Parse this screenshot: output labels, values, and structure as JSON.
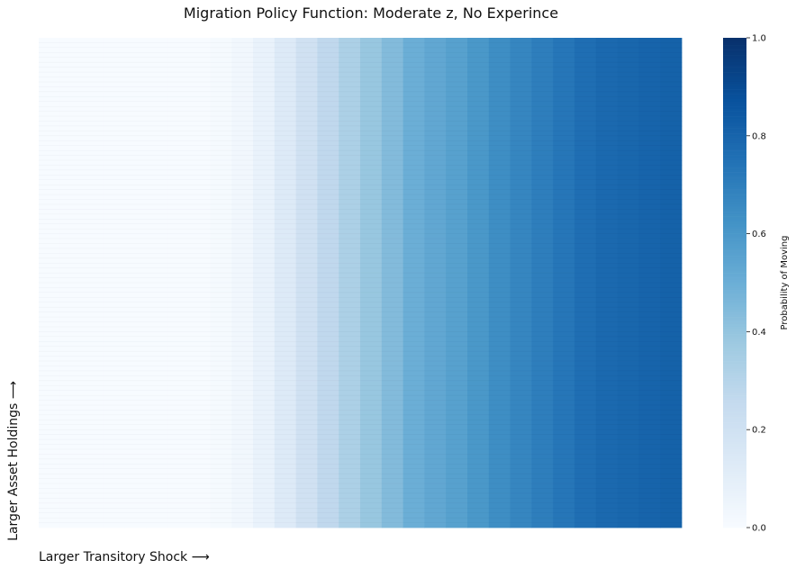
{
  "chart_data": {
    "type": "heatmap",
    "title": "Migration Policy Function: Moderate z, No Experince",
    "xlabel": "Larger Transitory Shock ⟶",
    "ylabel": "Larger Asset Holdings ⟶",
    "x_tick_labels_shown": false,
    "y_tick_labels_shown": false,
    "n_rows": 100,
    "n_cols": 30,
    "column_values": [
      0.0,
      0.0,
      0.0,
      0.0,
      0.0,
      0.0,
      0.0,
      0.0,
      0.01,
      0.03,
      0.07,
      0.13,
      0.2,
      0.27,
      0.33,
      0.39,
      0.44,
      0.5,
      0.53,
      0.56,
      0.6,
      0.64,
      0.67,
      0.7,
      0.73,
      0.76,
      0.78,
      0.79,
      0.8,
      0.81
    ],
    "colormap": "Blues",
    "colormap_low_color": "#f7fbff",
    "colormap_high_color": "#08306b",
    "colorbar": {
      "label": "Probability of Moving",
      "range": [
        0.0,
        1.0
      ],
      "ticks": [
        0.0,
        0.2,
        0.4,
        0.6,
        0.8,
        1.0
      ],
      "tick_labels": [
        "0.0",
        "0.2",
        "0.4",
        "0.6",
        "0.8",
        "1.0"
      ]
    }
  }
}
